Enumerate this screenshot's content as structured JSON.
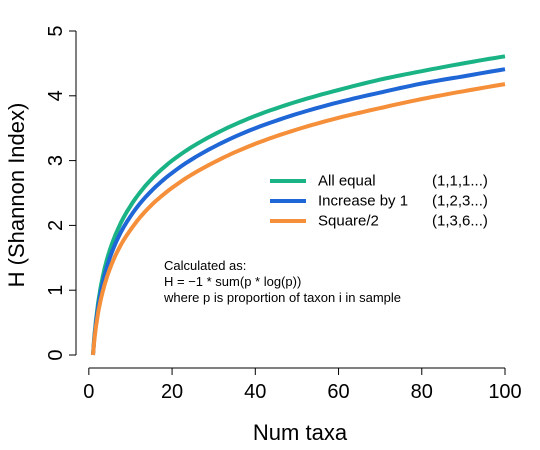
{
  "chart_data": {
    "type": "line",
    "title": "",
    "xlabel": "Num taxa",
    "ylabel": "H (Shannon Index)",
    "xlim": [
      1,
      100
    ],
    "ylim": [
      0,
      5
    ],
    "x_ticks": [
      0,
      20,
      40,
      60,
      80,
      100
    ],
    "y_ticks": [
      0,
      1,
      2,
      3,
      4,
      5
    ],
    "grid": false,
    "legend_position": "center-right",
    "series": [
      {
        "name": "All equal",
        "sequence": "(1,1,1...)",
        "color": "#1ab385",
        "x": [
          1,
          2,
          3,
          4,
          5,
          10,
          15,
          20,
          30,
          40,
          50,
          60,
          70,
          80,
          90,
          100
        ],
        "values": [
          0,
          0.69,
          1.1,
          1.39,
          1.61,
          2.3,
          2.71,
          3.0,
          3.4,
          3.69,
          3.91,
          4.09,
          4.25,
          4.38,
          4.5,
          4.61
        ]
      },
      {
        "name": "Increase by 1",
        "sequence": "(1,2,3...)",
        "color": "#1f66d6",
        "x": [
          1,
          2,
          3,
          4,
          5,
          10,
          15,
          20,
          30,
          40,
          50,
          60,
          70,
          80,
          90,
          100
        ],
        "values": [
          0,
          0.64,
          1.01,
          1.28,
          1.49,
          2.14,
          2.53,
          2.81,
          3.21,
          3.5,
          3.72,
          3.9,
          4.05,
          4.19,
          4.3,
          4.41
        ]
      },
      {
        "name": "Square/2",
        "sequence": "(1,3,6...)",
        "color": "#f58f3a",
        "x": [
          1,
          2,
          3,
          4,
          5,
          10,
          15,
          20,
          30,
          40,
          50,
          60,
          70,
          80,
          90,
          100
        ],
        "values": [
          0,
          0.56,
          0.89,
          1.13,
          1.32,
          1.93,
          2.31,
          2.58,
          2.97,
          3.26,
          3.48,
          3.66,
          3.81,
          3.95,
          4.07,
          4.18
        ]
      }
    ],
    "annotation": {
      "lines": [
        "Calculated as:",
        "H = −1 * sum(p * log(p))",
        "where p is proportion of taxon i in sample"
      ]
    }
  }
}
